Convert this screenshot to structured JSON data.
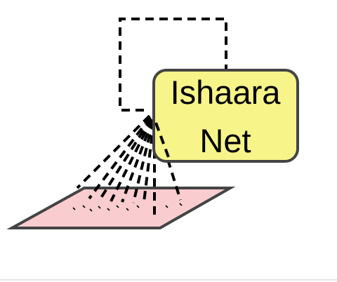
{
  "node": {
    "line1": "Ishaara",
    "line2": "Net"
  },
  "colors": {
    "node_fill": "#f7f48a",
    "node_stroke": "#444444",
    "plane_fill": "#f9cdd0",
    "plane_stroke": "#444444",
    "line": "#000000",
    "page_background": "#ffffff",
    "bottom_rule": "#e6e6e6"
  }
}
